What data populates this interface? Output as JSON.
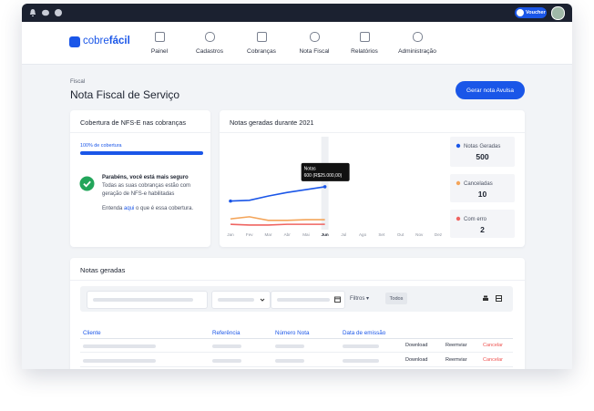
{
  "topbar": {
    "voucher": "Voucher"
  },
  "nav": {
    "logo_parts": [
      "cobre",
      "fácil"
    ],
    "items": [
      "Painel",
      "Cadastros",
      "Cobranças",
      "Nota Fiscal",
      "Relatórios",
      "Administração"
    ]
  },
  "page": {
    "breadcrumb": "Fiscal",
    "title": "Nota Fiscal de Serviço",
    "action": "Gerar nota Avulsa"
  },
  "coverage": {
    "title": "Cobertura de NFS-E nas cobranças",
    "progress_label": "100% de cobertura",
    "progress_value": 100,
    "heading": "Parabéns, você está mais seguro",
    "text_lines": [
      "Todas as suas cobranças estão com",
      "geração de NFS-e habilitadas"
    ],
    "link_prefix": "Entenda",
    "link": "aqui",
    "link_suffix": "o que é essa cobertura."
  },
  "chart": {
    "type": "line",
    "title": "Notas geradas durante 2021",
    "categories": [
      "Jan",
      "Fev",
      "Mar",
      "Abr",
      "Mai",
      "Jun",
      "Jul",
      "Ago",
      "Set",
      "Out",
      "Nov",
      "Dez"
    ],
    "ylim": [
      0,
      1300
    ],
    "series": [
      {
        "name": "Notas Geradas",
        "color": "#1a56e8",
        "values": [
          400,
          410,
          470,
          520,
          560,
          600,
          null,
          null,
          null,
          null,
          null,
          null
        ]
      },
      {
        "name": "Canceladas",
        "color": "#f4a55a",
        "values": [
          150,
          180,
          130,
          130,
          140,
          140,
          null,
          null,
          null,
          null,
          null,
          null
        ]
      },
      {
        "name": "Com erro",
        "color": "#ef6461",
        "values": [
          75,
          65,
          65,
          75,
          75,
          75,
          null,
          null,
          null,
          null,
          null,
          null
        ]
      }
    ],
    "totals": [
      500,
      10,
      2
    ],
    "tooltip": {
      "title": "Notas",
      "value_label": "600 (R$25.000,00)"
    }
  },
  "notes": {
    "title": "Notas geradas",
    "filters": "Filtros",
    "chip": "Todos",
    "columns": [
      "Cliente",
      "Referência",
      "Número Nota",
      "Data de emissão"
    ],
    "actions": [
      "Download",
      "Reemviar",
      "Cancelar"
    ]
  }
}
